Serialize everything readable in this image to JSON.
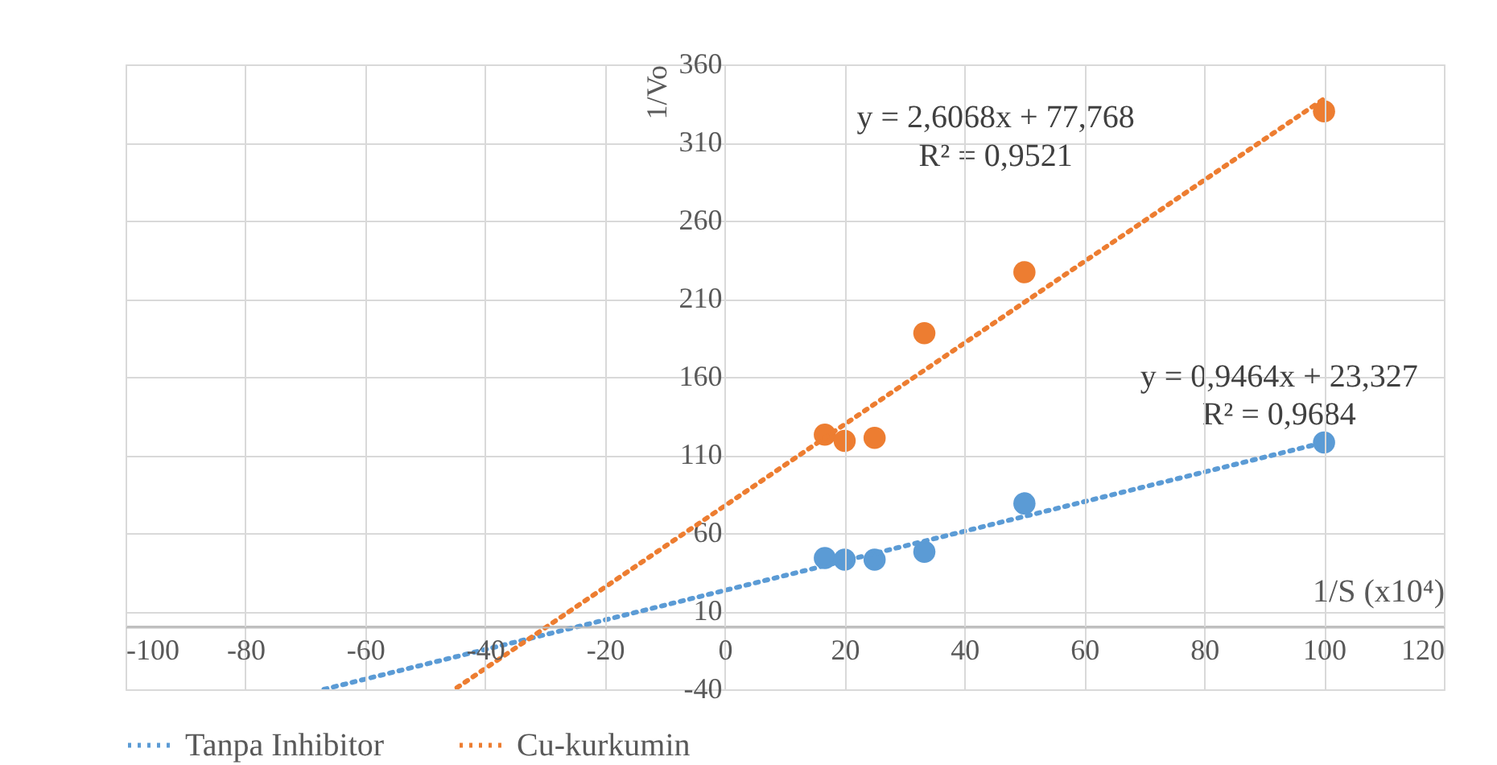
{
  "chart_data": {
    "type": "scatter",
    "xlabel": "1/S (x10⁴)",
    "ylabel": "1/Vo",
    "xlim": [
      -100,
      120
    ],
    "xticks": [
      -100,
      -80,
      -60,
      -40,
      -20,
      0,
      20,
      40,
      60,
      80,
      100,
      120
    ],
    "ylim": [
      -40,
      360
    ],
    "yticks": [
      -40,
      10,
      60,
      110,
      160,
      210,
      260,
      310,
      360
    ],
    "grid": true,
    "legend": "bottom",
    "marker": "circle",
    "series": [
      {
        "color": "#5b9bd5",
        "x": [
          16.7,
          20,
          25,
          33.3,
          50,
          100
        ],
        "values": [
          44,
          43,
          43,
          48,
          79,
          118
        ]
      },
      {
        "color": "#ed7d31",
        "x": [
          16.7,
          20,
          25,
          33.3,
          50,
          100
        ],
        "values": [
          123,
          119,
          121,
          188,
          227,
          330
        ]
      },
      {
        "type": "line",
        "name": "Tanpa Inhibitor",
        "color": "#5b9bd5",
        "line_style": "dotted",
        "marker": "none",
        "x": [
          -66.9,
          100
        ],
        "values": [
          -40,
          118
        ]
      },
      {
        "type": "line",
        "name": "Cu-kurkumin",
        "color": "#ed7d31",
        "line_style": "dotted",
        "marker": "none",
        "x": [
          -44.7,
          100
        ],
        "values": [
          -39,
          338
        ]
      }
    ],
    "ref_lines": [
      {
        "axis": "y",
        "value": 0,
        "color": "#bfbfbf"
      }
    ],
    "annotations": [
      "y = 2,6068x + 77,768",
      "R² = 0,9521",
      "y = 0,9464x + 23,327",
      "R² = 0,9684"
    ]
  }
}
